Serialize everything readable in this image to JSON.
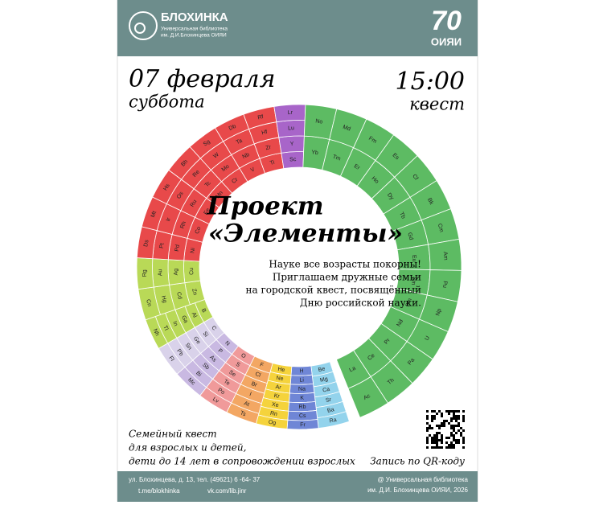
{
  "header": {
    "brand": "БЛОХИНКА",
    "subtitle_1": "Универсальная библиотека",
    "subtitle_2": "им. Д.И.Блохинцева ОИЯИ",
    "anniversary": "70",
    "org": "ОИЯИ"
  },
  "event": {
    "date": "07 февраля",
    "weekday": "суббота",
    "time": "15:00",
    "kind": "квест"
  },
  "title": {
    "line_1": "Проект",
    "line_2": "«Элементы»"
  },
  "invitation": [
    "Науке все возрасты покорны!",
    "Приглашаем дружные семьи",
    "на городской квест, посвящённый",
    "Дню российской науки."
  ],
  "ring": {
    "columns": [
      {
        "cells": [
          "Be",
          "Mg",
          "Ca",
          "Sr",
          "Ba",
          "Ra"
        ],
        "color": "#93d3ec"
      },
      {
        "cells": [
          "H",
          "Li",
          "Na",
          "K",
          "Rb",
          "Cs",
          "Fr"
        ],
        "color": "#6f86d6"
      },
      {
        "cells": [
          "He",
          "Ne",
          "Ar",
          "Kr",
          "Xe",
          "Rn",
          "Og"
        ],
        "color": "#f5d33c"
      },
      {
        "cells": [
          "F",
          "Cl",
          "Br",
          "I",
          "At",
          "Ts"
        ],
        "color": "#f3a763"
      },
      {
        "cells": [
          "O",
          "S",
          "Se",
          "Te",
          "Po",
          "Lv"
        ],
        "color": "#f09a9a"
      },
      {
        "cells": [
          "N",
          "P",
          "As",
          "Sb",
          "Bi",
          "Mc"
        ],
        "color": "#c9b9e2"
      },
      {
        "cells": [
          "C",
          "Si",
          "Ge",
          "Sn",
          "Pb",
          "Fl"
        ],
        "color": "#d9d2ea"
      },
      {
        "cells": [
          "B",
          "Al",
          "Ga",
          "In",
          "Tl",
          "Nh"
        ],
        "color": "#b9d957"
      },
      {
        "cells": [
          "Zn",
          "Cd",
          "Hg",
          "Cn"
        ],
        "color": "#b9d957"
      },
      {
        "cells": [
          "Cu",
          "Ag",
          "Au",
          "Rg"
        ],
        "color": "#b9d957"
      },
      {
        "cells": [
          "Ni",
          "Pd",
          "Pt",
          "Ds"
        ],
        "color": "#e8494a"
      },
      {
        "cells": [
          "Co",
          "Rh",
          "Ir",
          "Mt"
        ],
        "color": "#e8494a"
      },
      {
        "cells": [
          "Fe",
          "Ru",
          "Os",
          "Hs"
        ],
        "color": "#e8494a"
      },
      {
        "cells": [
          "Mn",
          "Tc",
          "Re",
          "Bh"
        ],
        "color": "#e8494a"
      },
      {
        "cells": [
          "Cr",
          "Mo",
          "W",
          "Sg"
        ],
        "color": "#e8494a"
      },
      {
        "cells": [
          "V",
          "Nb",
          "Ta",
          "Db"
        ],
        "color": "#e8494a"
      },
      {
        "cells": [
          "Ti",
          "Zr",
          "Hf",
          "Rf"
        ],
        "color": "#e8494a"
      },
      {
        "cells": [
          "Sc",
          "Y",
          "Lu",
          "Lr"
        ],
        "color": "#a865c9"
      },
      {
        "cells": [
          "Yb",
          "No"
        ],
        "color": "#5dbb63"
      },
      {
        "cells": [
          "Tm",
          "Md"
        ],
        "color": "#5dbb63"
      },
      {
        "cells": [
          "Er",
          "Fm"
        ],
        "color": "#5dbb63"
      },
      {
        "cells": [
          "Ho",
          "Es"
        ],
        "color": "#5dbb63"
      },
      {
        "cells": [
          "Dy",
          "Cf"
        ],
        "color": "#5dbb63"
      },
      {
        "cells": [
          "Tb",
          "Bk"
        ],
        "color": "#5dbb63"
      },
      {
        "cells": [
          "Gd",
          "Cm"
        ],
        "color": "#5dbb63"
      },
      {
        "cells": [
          "Eu",
          "Am"
        ],
        "color": "#5dbb63"
      },
      {
        "cells": [
          "Sm",
          "Pu"
        ],
        "color": "#5dbb63"
      },
      {
        "cells": [
          "Pm",
          "Np"
        ],
        "color": "#5dbb63"
      },
      {
        "cells": [
          "Nd",
          "U"
        ],
        "color": "#5dbb63"
      },
      {
        "cells": [
          "Pr",
          "Pa"
        ],
        "color": "#5dbb63"
      },
      {
        "cells": [
          "Ce",
          "Th"
        ],
        "color": "#5dbb63"
      },
      {
        "cells": [
          "La",
          "Ac"
        ],
        "color": "#5dbb63"
      }
    ]
  },
  "bottom": {
    "audience": [
      "Семейный квест",
      "для взрослых и детей,",
      "дети до 14 лет в сопровождении взрослых"
    ],
    "registration": "Запись по QR-коду"
  },
  "footer": {
    "address": "ул. Блохинцева, д. 13, тел. (49621) 6 -64- 37",
    "telegram": "t.me/blokhinka",
    "vk": "vk.com/lib.jinr",
    "copyright_1": "@ Универсальная библиотека",
    "copyright_2": "им. Д.И. Блохинцева ОИЯИ, 2026"
  }
}
